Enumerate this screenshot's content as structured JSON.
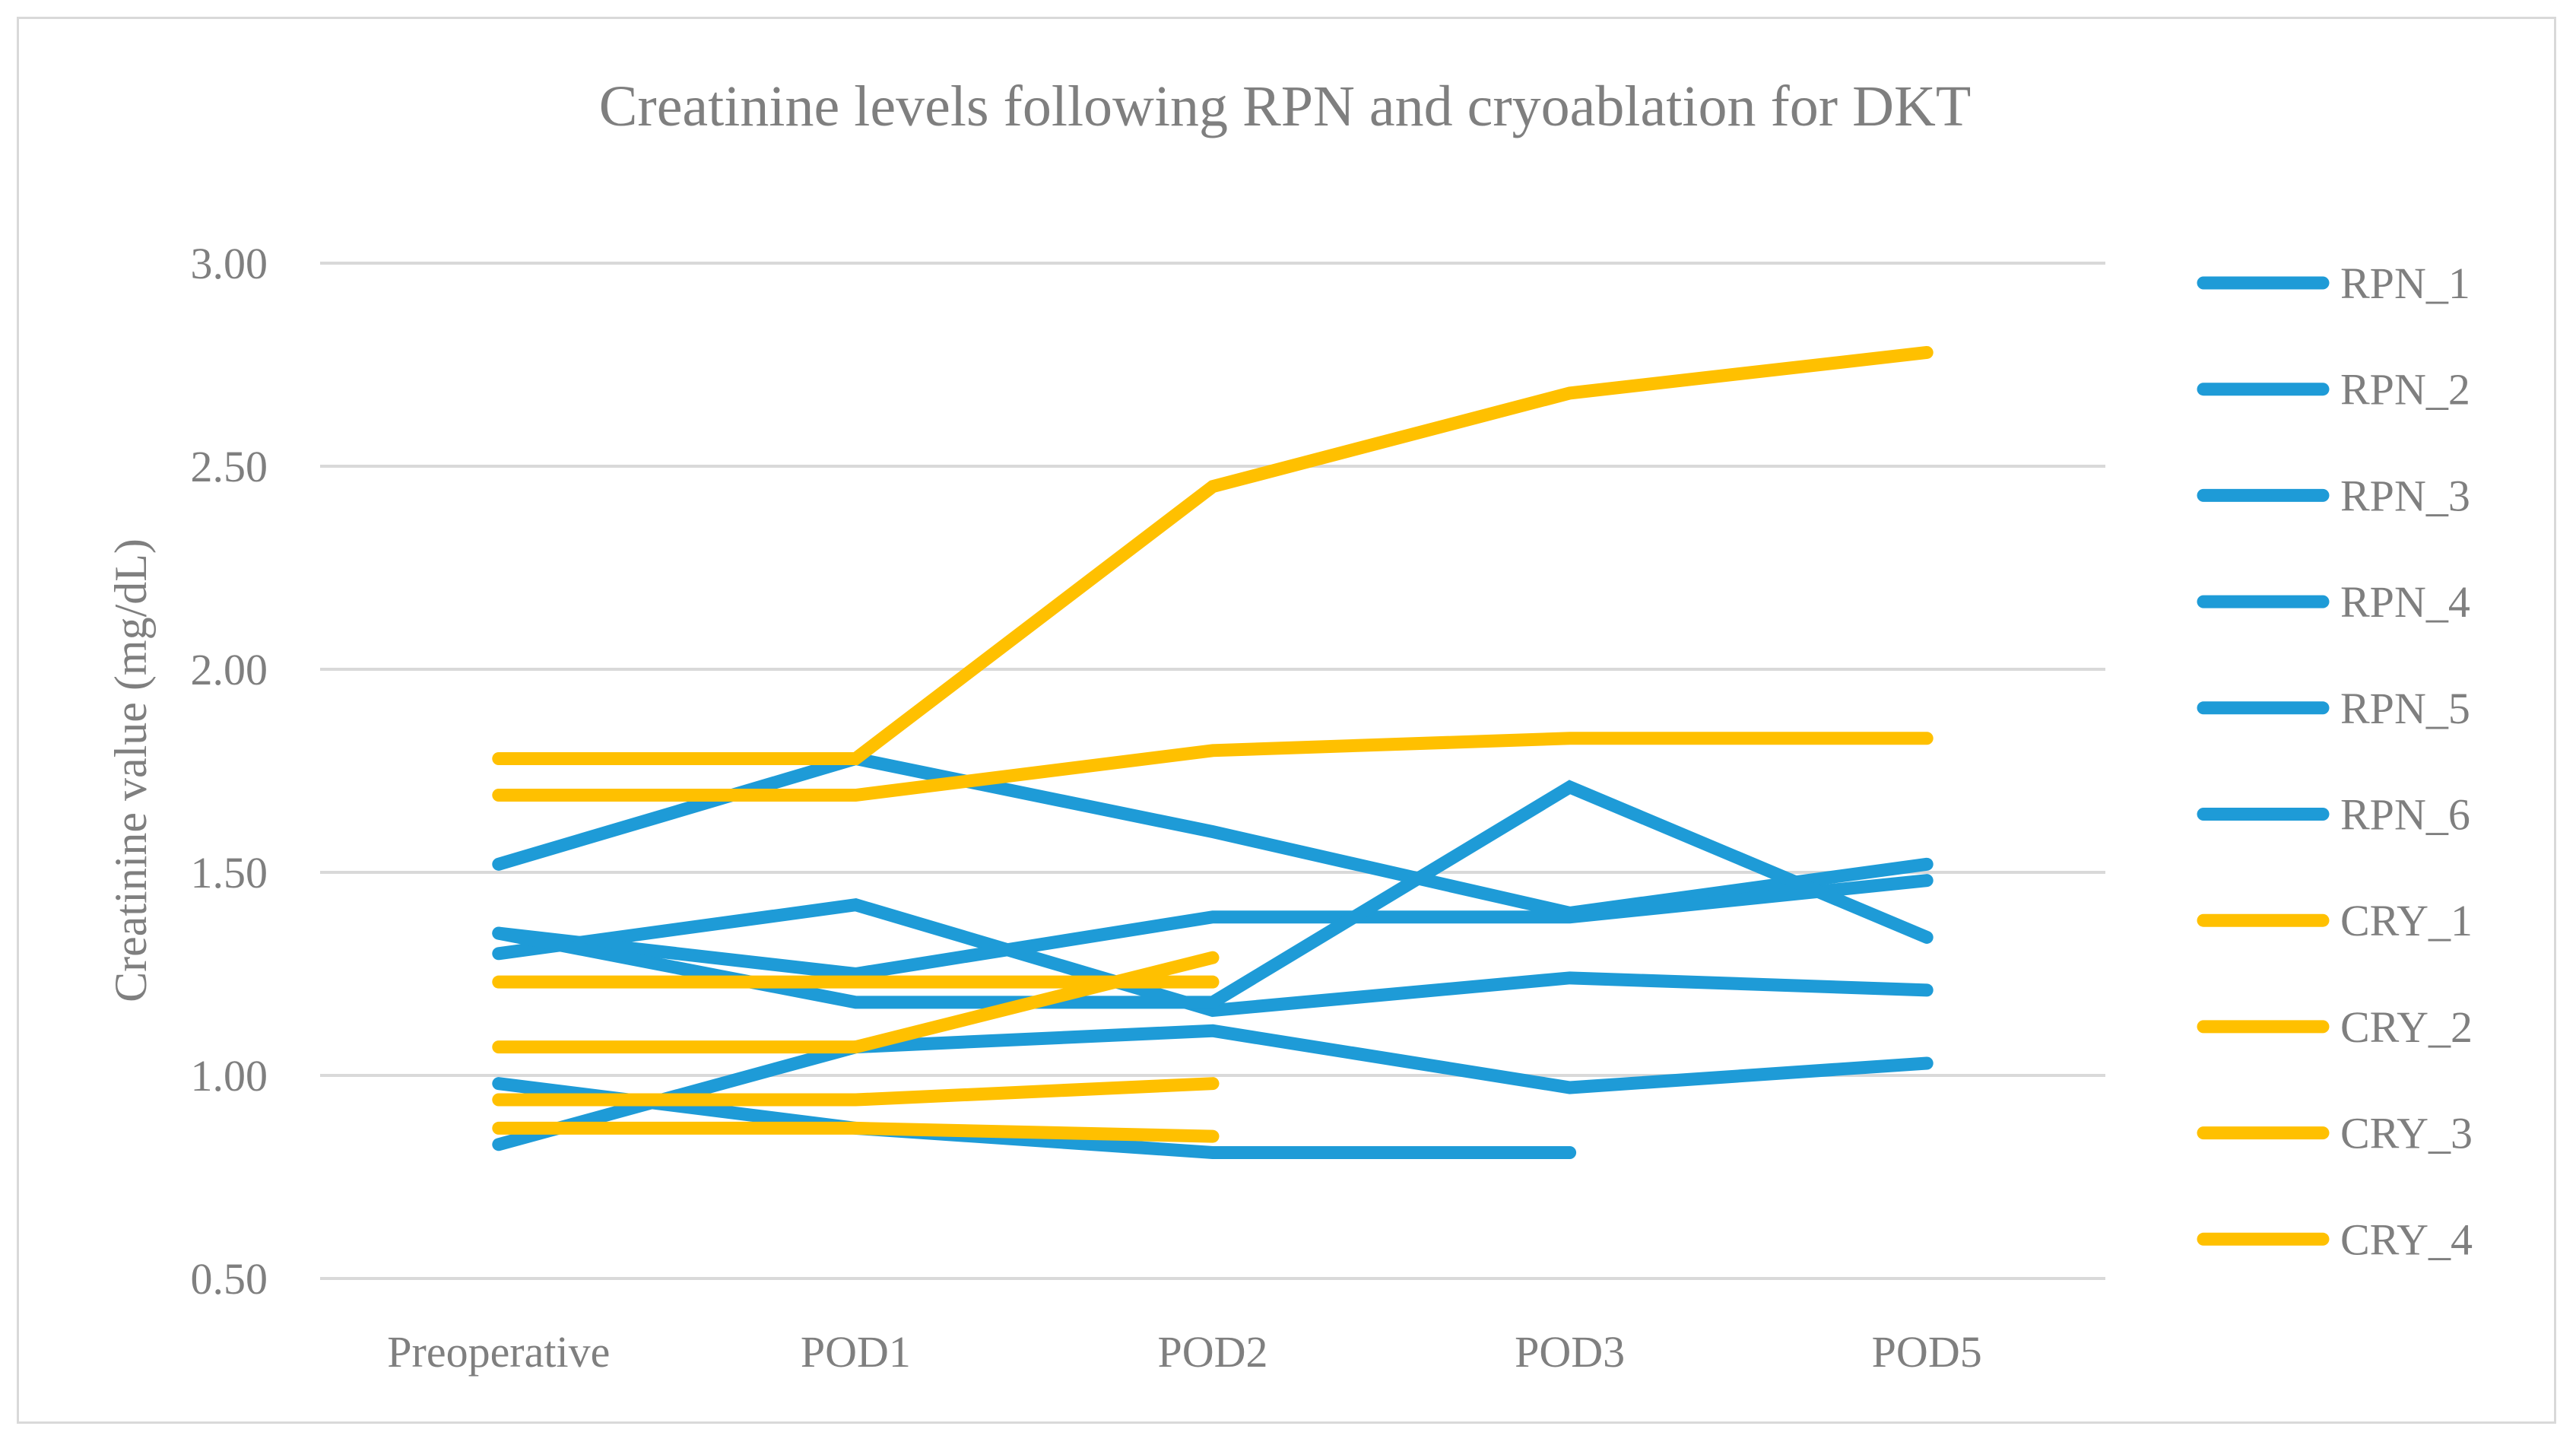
{
  "chart_data": {
    "type": "line",
    "title": "Creatinine levels following RPN and cryoablation for DKT",
    "xlabel": "",
    "ylabel": "Creatinine value (mg/dL)",
    "ylim": [
      0.5,
      3.0
    ],
    "yticks": [
      "0.50",
      "1.00",
      "1.50",
      "2.00",
      "2.50",
      "3.00"
    ],
    "ytick_values": [
      0.5,
      1.0,
      1.5,
      2.0,
      2.5,
      3.0
    ],
    "categories": [
      "Preoperative",
      "POD1",
      "POD2",
      "POD3",
      "POD5"
    ],
    "grid": true,
    "legend_position": "right",
    "colors": {
      "RPN": "#1e9bd7",
      "CRY": "#ffc000",
      "grid": "#d9d9d9",
      "text": "#7f7f7f"
    },
    "series": [
      {
        "name": "RPN_1",
        "group": "RPN",
        "values": [
          1.52,
          1.78,
          1.6,
          1.4,
          1.52
        ]
      },
      {
        "name": "RPN_2",
        "group": "RPN",
        "values": [
          1.3,
          1.42,
          1.16,
          1.24,
          1.21
        ]
      },
      {
        "name": "RPN_3",
        "group": "RPN",
        "values": [
          1.35,
          1.25,
          1.39,
          1.39,
          1.48
        ]
      },
      {
        "name": "RPN_4",
        "group": "RPN",
        "values": [
          1.35,
          1.18,
          1.18,
          1.71,
          1.34
        ]
      },
      {
        "name": "RPN_5",
        "group": "RPN",
        "values": [
          0.83,
          1.07,
          1.11,
          0.97,
          1.03
        ]
      },
      {
        "name": "RPN_6",
        "group": "RPN",
        "values": [
          0.98,
          0.87,
          0.81,
          0.81,
          null
        ]
      },
      {
        "name": "CRY_1",
        "group": "CRY",
        "values": [
          1.78,
          1.78,
          2.45,
          2.68,
          2.78
        ]
      },
      {
        "name": "CRY_2",
        "group": "CRY",
        "values": [
          1.69,
          1.69,
          1.8,
          1.83,
          1.83
        ]
      },
      {
        "name": "CRY_3",
        "group": "CRY",
        "values": [
          1.23,
          1.23,
          1.23,
          null,
          null
        ]
      },
      {
        "name": "CRY_4",
        "group": "CRY",
        "values": [
          1.07,
          1.07,
          1.29,
          null,
          null
        ]
      },
      {
        "name": "",
        "group": "CRY",
        "values": [
          0.94,
          0.94,
          0.98,
          null,
          null
        ]
      },
      {
        "name": "",
        "group": "CRY",
        "values": [
          0.87,
          0.87,
          0.85,
          null,
          null
        ]
      }
    ],
    "legend": [
      "RPN_1",
      "RPN_2",
      "RPN_3",
      "RPN_4",
      "RPN_5",
      "RPN_6",
      "CRY_1",
      "CRY_2",
      "CRY_3",
      "CRY_4"
    ]
  }
}
